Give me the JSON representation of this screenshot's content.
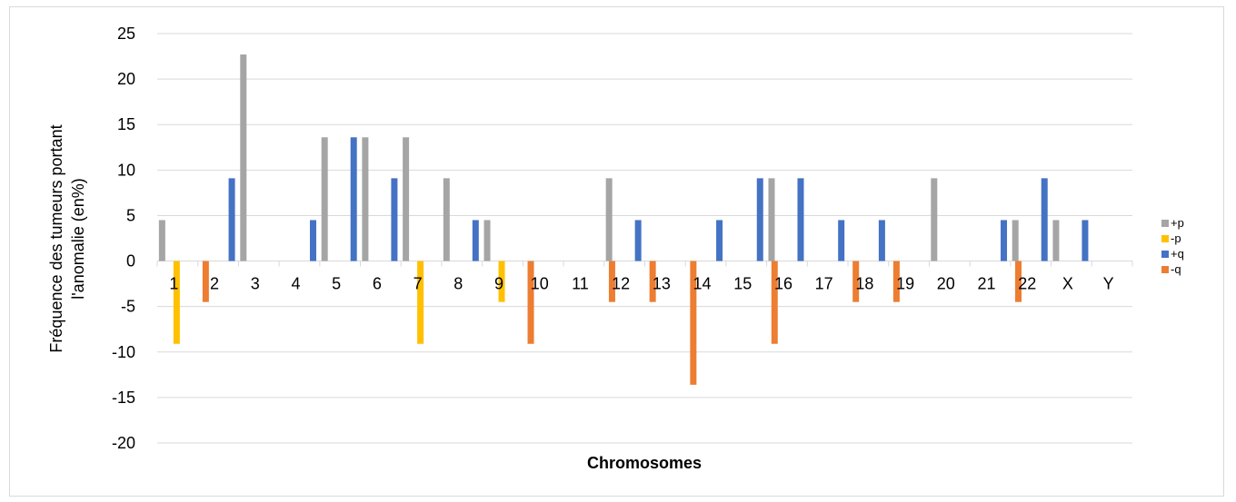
{
  "chart_data": {
    "type": "bar",
    "title": "",
    "xlabel": "Chromosomes",
    "ylabel_lines": [
      "Fréquence des tumeurs portant",
      "l'anomalie  (en%)"
    ],
    "ylim": [
      -20,
      25
    ],
    "ytick_step": 5,
    "grid": true,
    "legend_position": "right",
    "categories": [
      "1",
      "2",
      "3",
      "4",
      "5",
      "6",
      "7",
      "8",
      "9",
      "10",
      "11",
      "12",
      "13",
      "14",
      "15",
      "16",
      "17",
      "18",
      "19",
      "20",
      "21",
      "22",
      "X",
      "Y"
    ],
    "series": [
      {
        "name": "+p",
        "color": "#a5a5a5",
        "values": [
          4.5,
          0,
          22.7,
          0,
          13.6,
          13.6,
          13.6,
          9.1,
          4.5,
          0,
          0,
          9.1,
          0,
          0,
          0,
          9.1,
          0,
          0,
          0,
          9.1,
          0,
          4.5,
          4.5,
          0
        ]
      },
      {
        "name": "-p",
        "color": "#ffc000",
        "values": [
          -9.1,
          0,
          0,
          0,
          0,
          0,
          -9.1,
          0,
          -4.5,
          0,
          0,
          0,
          0,
          0,
          0,
          0,
          0,
          0,
          0,
          0,
          0,
          0,
          0,
          0
        ]
      },
      {
        "name": "+q",
        "color": "#4472c4",
        "values": [
          0,
          9.1,
          0,
          4.5,
          13.6,
          9.1,
          0,
          4.5,
          0,
          0,
          0,
          4.5,
          0,
          4.5,
          9.1,
          9.1,
          4.5,
          4.5,
          0,
          0,
          4.5,
          9.1,
          4.5,
          0
        ]
      },
      {
        "name": "-q",
        "color": "#ed7d31",
        "values": [
          -4.5,
          0,
          0,
          0,
          0,
          0,
          0,
          0,
          -9.1,
          0,
          -4.5,
          -4.5,
          -13.6,
          0,
          -9.1,
          0,
          -4.5,
          -4.5,
          0,
          0,
          -4.5,
          0,
          0,
          0
        ]
      }
    ]
  }
}
